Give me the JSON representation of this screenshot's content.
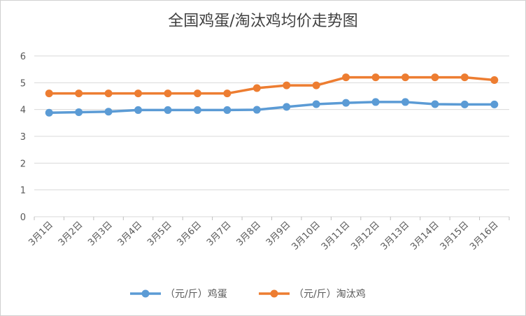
{
  "chart_data": {
    "type": "line",
    "title": "全国鸡蛋/淘汰鸡均价走势图",
    "categories": [
      "3月1日",
      "3月2日",
      "3月3日",
      "3月4日",
      "3月5日",
      "3月6日",
      "3月7日",
      "3月8日",
      "3月9日",
      "3月10日",
      "3月11日",
      "3月12日",
      "3月13日",
      "3月14日",
      "3月15日",
      "3月16日"
    ],
    "series": [
      {
        "name": "（元/斤）鸡蛋",
        "color": "#5B9BD5",
        "values": [
          3.88,
          3.9,
          3.92,
          3.98,
          3.98,
          3.98,
          3.98,
          3.99,
          4.1,
          4.2,
          4.25,
          4.28,
          4.28,
          4.2,
          4.19,
          4.19
        ]
      },
      {
        "name": "（元/斤）淘汰鸡",
        "color": "#ED7D31",
        "values": [
          4.6,
          4.6,
          4.6,
          4.6,
          4.6,
          4.6,
          4.6,
          4.8,
          4.9,
          4.9,
          5.2,
          5.2,
          5.2,
          5.2,
          5.2,
          5.1
        ]
      }
    ],
    "yticks": [
      "0",
      "1",
      "2",
      "3",
      "4",
      "5",
      "6"
    ],
    "ylim": [
      0,
      6
    ],
    "grid": true,
    "legend": "bottom"
  }
}
